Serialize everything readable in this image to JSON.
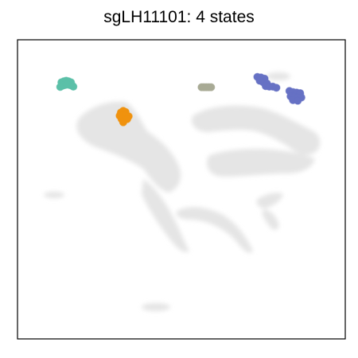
{
  "chart_data": {
    "type": "scatter",
    "title": "sgLH11101: 4 states",
    "xlabel": "",
    "ylabel": "",
    "axes_ticks": false,
    "grid": false,
    "legend": "none",
    "background_color": "#e0e0e0",
    "series": [
      {
        "name": "",
        "color": "#5bc0a8",
        "points": [
          [
            -5.05,
            2.62
          ],
          [
            -4.95,
            2.66
          ],
          [
            -4.85,
            2.68
          ],
          [
            -4.75,
            2.66
          ],
          [
            -4.65,
            2.62
          ],
          [
            -5.0,
            2.5
          ],
          [
            -4.9,
            2.52
          ],
          [
            -4.8,
            2.54
          ],
          [
            -4.7,
            2.52
          ],
          [
            -4.6,
            2.5
          ],
          [
            -5.1,
            2.45
          ],
          [
            -4.55,
            2.46
          ]
        ]
      },
      {
        "name": "",
        "color": "#f0920e",
        "points": [
          [
            -2.55,
            1.5
          ],
          [
            -2.45,
            1.56
          ],
          [
            -2.35,
            1.52
          ],
          [
            -2.6,
            1.38
          ],
          [
            -2.48,
            1.4
          ],
          [
            -2.35,
            1.4
          ],
          [
            -2.22,
            1.36
          ],
          [
            -2.52,
            1.26
          ],
          [
            -2.4,
            1.24
          ],
          [
            -2.28,
            1.26
          ],
          [
            -2.45,
            1.14
          ]
        ]
      },
      {
        "name": "",
        "color": "#a8aa95",
        "points": [
          [
            0.85,
            2.44
          ],
          [
            0.95,
            2.44
          ],
          [
            1.05,
            2.44
          ],
          [
            1.15,
            2.44
          ],
          [
            1.25,
            2.44
          ]
        ]
      },
      {
        "name": "",
        "color": "#6671c4",
        "points": [
          [
            3.2,
            2.82
          ],
          [
            3.35,
            2.8
          ],
          [
            3.5,
            2.76
          ],
          [
            3.3,
            2.68
          ],
          [
            3.45,
            2.62
          ],
          [
            3.6,
            2.58
          ],
          [
            3.55,
            2.48
          ],
          [
            3.7,
            2.46
          ],
          [
            3.85,
            2.46
          ],
          [
            4.0,
            2.42
          ],
          [
            4.55,
            2.3
          ],
          [
            4.7,
            2.26
          ],
          [
            4.85,
            2.24
          ],
          [
            5.0,
            2.22
          ],
          [
            4.6,
            2.1
          ],
          [
            4.75,
            2.08
          ],
          [
            4.9,
            2.06
          ],
          [
            5.05,
            2.06
          ],
          [
            4.7,
            1.96
          ],
          [
            4.9,
            1.94
          ]
        ]
      }
    ]
  }
}
